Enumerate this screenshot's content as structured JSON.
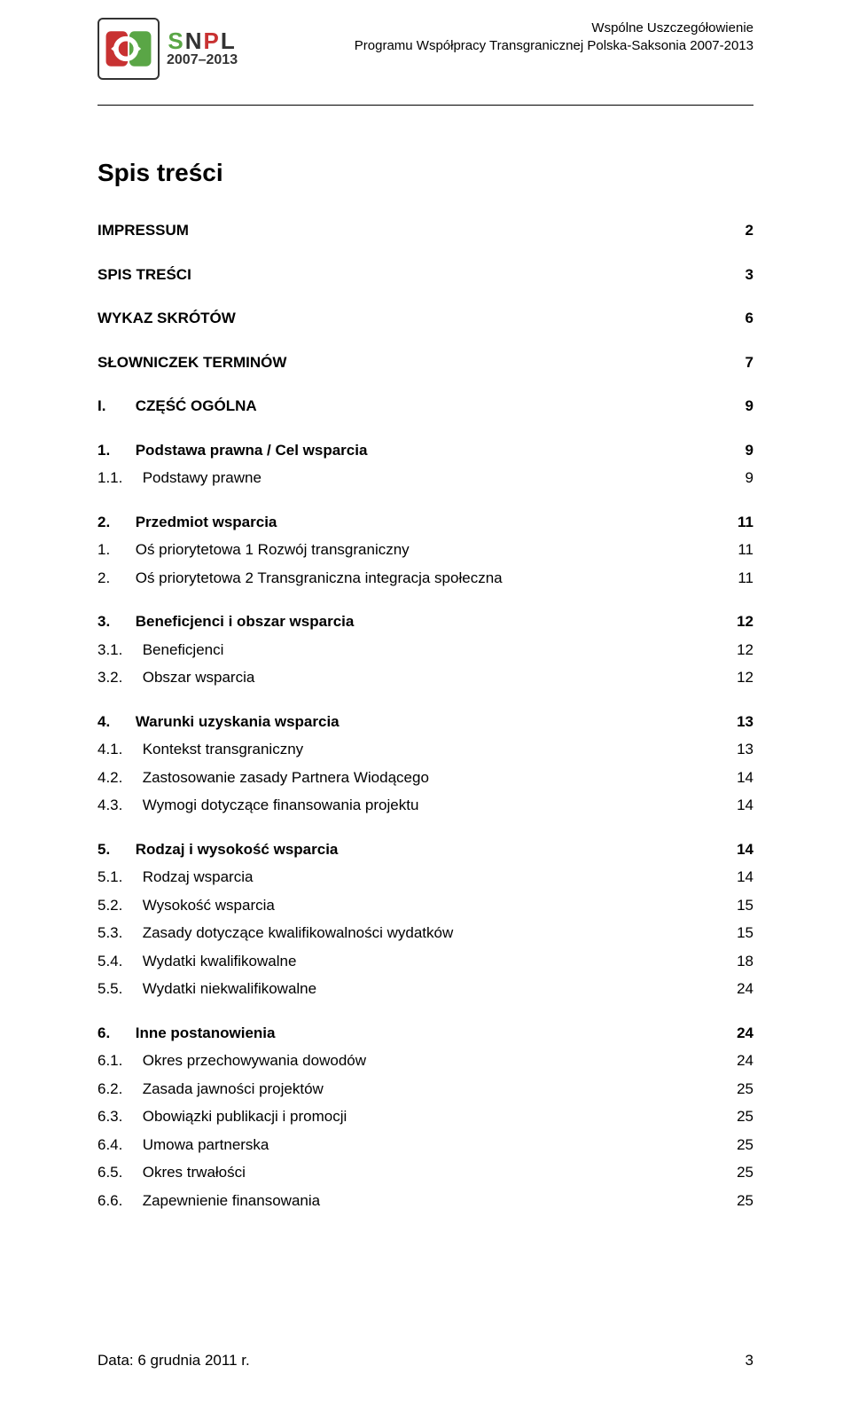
{
  "header": {
    "line1": "Wspólne Uszczegółowienie",
    "line2": "Programu Współpracy Transgranicznej Polska-Saksonia 2007-2013",
    "logo_snpl": "SNPL",
    "logo_years": "2007–2013",
    "logo_colors": {
      "green": "#5aa646",
      "red": "#c83232",
      "border": "#333333"
    }
  },
  "title": "Spis treści",
  "toc": [
    {
      "group": [
        {
          "label": "IMPRESSUM",
          "page": "2",
          "bold": true
        }
      ]
    },
    {
      "group": [
        {
          "label": "SPIS TREŚCI",
          "page": "3",
          "bold": true
        }
      ]
    },
    {
      "group": [
        {
          "label": "WYKAZ SKRÓTÓW",
          "page": "6",
          "bold": true
        }
      ]
    },
    {
      "group": [
        {
          "label": "SŁOWNICZEK TERMINÓW",
          "page": "7",
          "bold": true
        }
      ]
    },
    {
      "group": [
        {
          "num": "I.",
          "label": "CZĘŚĆ OGÓLNA",
          "page": "9",
          "bold": true
        }
      ]
    },
    {
      "group": [
        {
          "num": "1.",
          "label": "Podstawa prawna / Cel wsparcia",
          "page": "9",
          "bold": true
        },
        {
          "num": "1.1.",
          "label": "Podstawy prawne",
          "page": "9"
        }
      ]
    },
    {
      "group": [
        {
          "num": "2.",
          "label": "Przedmiot wsparcia",
          "page": "11",
          "bold": true
        },
        {
          "num": "1.",
          "label": "Oś priorytetowa 1 Rozwój transgraniczny",
          "page": "11"
        },
        {
          "num": "2.",
          "label": "Oś priorytetowa 2 Transgraniczna integracja społeczna",
          "page": "11"
        }
      ]
    },
    {
      "group": [
        {
          "num": "3.",
          "label": "Beneficjenci i obszar wsparcia",
          "page": "12",
          "bold": true
        },
        {
          "num": "3.1.",
          "label": "Beneficjenci",
          "page": "12"
        },
        {
          "num": "3.2.",
          "label": "Obszar wsparcia",
          "page": "12"
        }
      ]
    },
    {
      "group": [
        {
          "num": "4.",
          "label": "Warunki uzyskania wsparcia",
          "page": "13",
          "bold": true
        },
        {
          "num": "4.1.",
          "label": "Kontekst transgraniczny",
          "page": "13"
        },
        {
          "num": "4.2.",
          "label": "Zastosowanie zasady Partnera Wiodącego",
          "page": "14"
        },
        {
          "num": "4.3.",
          "label": "Wymogi dotyczące finansowania projektu",
          "page": "14"
        }
      ]
    },
    {
      "group": [
        {
          "num": "5.",
          "label": "Rodzaj i wysokość wsparcia",
          "page": "14",
          "bold": true
        },
        {
          "num": "5.1.",
          "label": "Rodzaj wsparcia",
          "page": "14"
        },
        {
          "num": "5.2.",
          "label": "Wysokość wsparcia",
          "page": "15"
        },
        {
          "num": "5.3.",
          "label": "Zasady dotyczące kwalifikowalności wydatków",
          "page": "15"
        },
        {
          "num": "5.4.",
          "label": "Wydatki kwalifikowalne",
          "page": "18"
        },
        {
          "num": "5.5.",
          "label": "Wydatki niekwalifikowalne",
          "page": "24"
        }
      ]
    },
    {
      "group": [
        {
          "num": "6.",
          "label": "Inne postanowienia",
          "page": "24",
          "bold": true
        },
        {
          "num": "6.1.",
          "label": "Okres przechowywania dowodów",
          "page": "24"
        },
        {
          "num": "6.2.",
          "label": "Zasada jawności projektów",
          "page": "25"
        },
        {
          "num": "6.3.",
          "label": "Obowiązki publikacji i promocji",
          "page": "25"
        },
        {
          "num": "6.4.",
          "label": "Umowa partnerska",
          "page": "25"
        },
        {
          "num": "6.5.",
          "label": "Okres trwałości",
          "page": "25"
        },
        {
          "num": "6.6.",
          "label": "Zapewnienie finansowania",
          "page": "25"
        }
      ]
    }
  ],
  "footer": {
    "date": "Data: 6 grudnia 2011 r.",
    "page_num": "3"
  }
}
